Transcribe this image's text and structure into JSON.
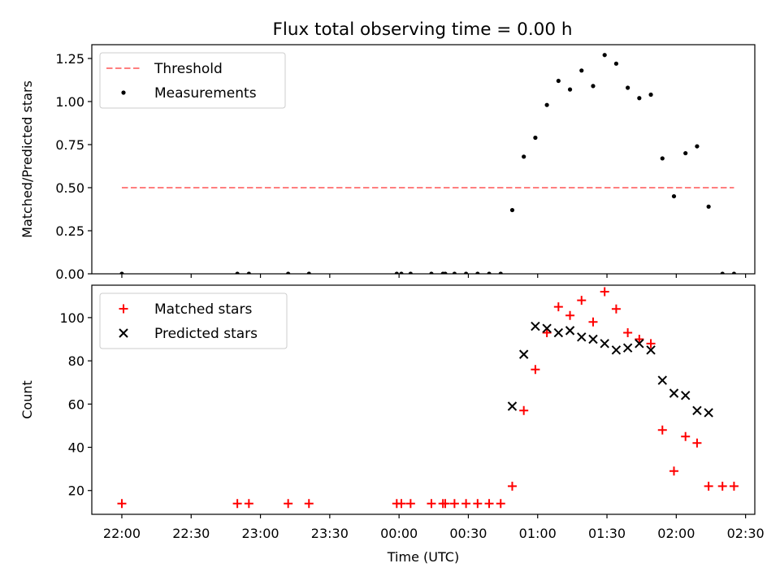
{
  "title": "Flux total observing time = 0.00 h",
  "chart_data": [
    {
      "type": "scatter",
      "ylabel": "Matched/Predicted stars",
      "ylim": [
        0,
        1.33
      ],
      "yticks": [
        "0.00",
        "0.25",
        "0.50",
        "0.75",
        "1.00",
        "1.25"
      ],
      "yticks_values": [
        0,
        0.25,
        0.5,
        0.75,
        1.0,
        1.25
      ],
      "legend_placement": "upper-left",
      "threshold": {
        "name": "Threshold",
        "color": "#ff7f7f",
        "y": 0.5,
        "x_start": "22:00",
        "x_end": "02:25"
      },
      "series": [
        {
          "name": "Measurements",
          "marker": "dot",
          "color": "#000000",
          "x": [
            "22:00",
            "22:50",
            "22:55",
            "23:12",
            "23:21",
            "23:59",
            "00:01",
            "00:05",
            "00:14",
            "00:19",
            "00:20",
            "00:24",
            "00:29",
            "00:34",
            "00:39",
            "00:44",
            "00:49",
            "00:54",
            "00:59",
            "01:04",
            "01:09",
            "01:14",
            "01:19",
            "01:24",
            "01:29",
            "01:34",
            "01:39",
            "01:44",
            "01:49",
            "01:54",
            "01:59",
            "02:04",
            "02:09",
            "02:14",
            "02:20",
            "02:25"
          ],
          "y": [
            0,
            0,
            0,
            0,
            0,
            0,
            0,
            0,
            0,
            0,
            0,
            0,
            0,
            0,
            0,
            0,
            0.37,
            0.68,
            0.79,
            0.98,
            1.12,
            1.07,
            1.18,
            1.09,
            1.27,
            1.22,
            1.08,
            1.02,
            1.04,
            0.67,
            0.45,
            0.7,
            0.74,
            0.39,
            0,
            0
          ]
        }
      ]
    },
    {
      "type": "scatter",
      "xlabel": "Time (UTC)",
      "ylabel": "Count",
      "ylim": [
        9,
        115
      ],
      "yticks": [
        "20",
        "40",
        "60",
        "80",
        "100"
      ],
      "yticks_values": [
        20,
        40,
        60,
        80,
        100
      ],
      "xlim": [
        "21:47",
        "02:34"
      ],
      "xticks": [
        "22:00",
        "22:30",
        "23:00",
        "23:30",
        "00:00",
        "00:30",
        "01:00",
        "01:30",
        "02:00",
        "02:30"
      ],
      "legend_placement": "upper-left",
      "series": [
        {
          "name": "Matched stars",
          "marker": "plus",
          "color": "#ff0000",
          "x": [
            "22:00",
            "22:50",
            "22:55",
            "23:12",
            "23:21",
            "23:59",
            "00:01",
            "00:05",
            "00:14",
            "00:19",
            "00:20",
            "00:24",
            "00:29",
            "00:34",
            "00:39",
            "00:44",
            "00:49",
            "00:54",
            "00:59",
            "01:04",
            "01:09",
            "01:14",
            "01:19",
            "01:24",
            "01:29",
            "01:34",
            "01:39",
            "01:44",
            "01:49",
            "01:54",
            "01:59",
            "02:04",
            "02:09",
            "02:14",
            "02:20",
            "02:25"
          ],
          "y": [
            14,
            14,
            14,
            14,
            14,
            14,
            14,
            14,
            14,
            14,
            14,
            14,
            14,
            14,
            14,
            14,
            22,
            57,
            76,
            93,
            105,
            101,
            108,
            98,
            112,
            104,
            93,
            90,
            88,
            48,
            29,
            45,
            42,
            22,
            22,
            22
          ]
        },
        {
          "name": "Predicted stars",
          "marker": "x",
          "color": "#000000",
          "x": [
            "00:49",
            "00:54",
            "00:59",
            "01:04",
            "01:09",
            "01:14",
            "01:19",
            "01:24",
            "01:29",
            "01:34",
            "01:39",
            "01:44",
            "01:49",
            "01:54",
            "01:59",
            "02:04",
            "02:09",
            "02:14"
          ],
          "y": [
            59,
            83,
            96,
            95,
            93,
            94,
            91,
            90,
            88,
            85,
            86,
            88,
            85,
            71,
            65,
            64,
            57,
            56
          ]
        }
      ]
    }
  ]
}
